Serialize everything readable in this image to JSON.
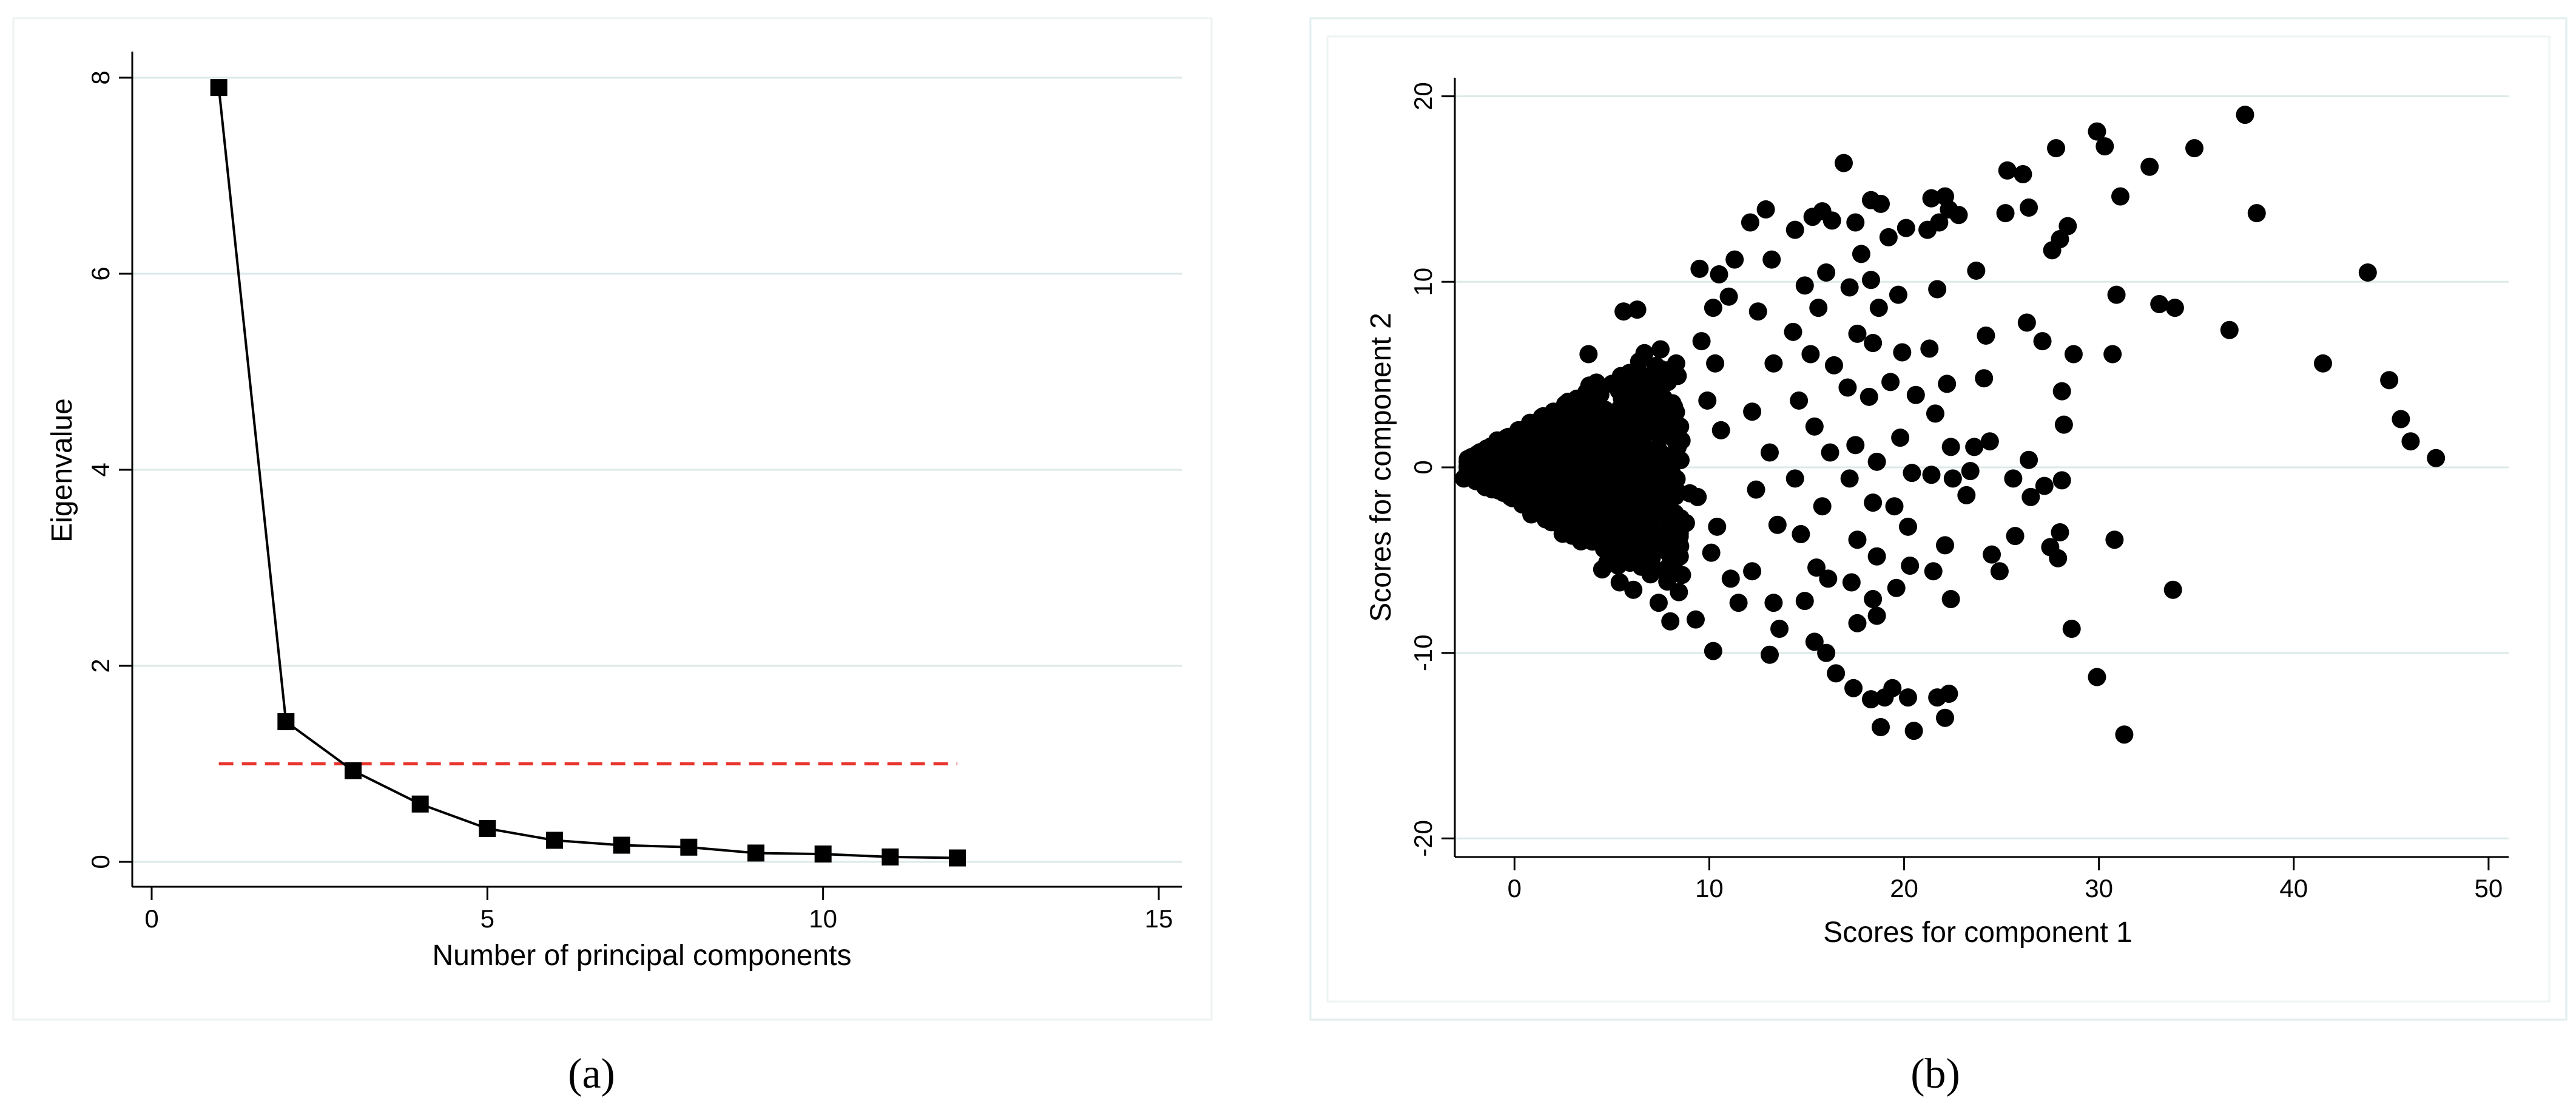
{
  "captions": {
    "a": "(a)",
    "b": "(b)"
  },
  "chart_data": [
    {
      "type": "line",
      "panel": "a",
      "xlabel": "Number of principal components",
      "ylabel": "Eigenvalue",
      "xlim": [
        0,
        15
      ],
      "ylim": [
        0,
        8
      ],
      "xticks": [
        0,
        5,
        10,
        15
      ],
      "yticks": [
        0,
        2,
        4,
        6,
        8
      ],
      "grid": "horizontal",
      "series": [
        {
          "x": [
            1,
            2,
            3,
            4,
            5,
            6,
            7,
            8,
            9,
            10,
            11,
            12
          ],
          "y": [
            7.9,
            1.43,
            0.93,
            0.59,
            0.34,
            0.22,
            0.17,
            0.15,
            0.09,
            0.08,
            0.05,
            0.04
          ],
          "marker": "square",
          "color": "#000000"
        }
      ],
      "reference_line": {
        "y": 1,
        "x": [
          1,
          12
        ],
        "style": "dashed",
        "color": "#e8342c"
      }
    },
    {
      "type": "scatter",
      "panel": "b",
      "xlabel": "Scores for component 1",
      "ylabel": "Scores for component 2",
      "xlim": [
        -3,
        51
      ],
      "ylim": [
        -21,
        21
      ],
      "xticks": [
        0,
        10,
        20,
        30,
        40,
        50
      ],
      "yticks": [
        -20,
        -10,
        0,
        10,
        20
      ],
      "grid": "horizontal",
      "marker_color": "#000000",
      "points": [
        [
          -2.6,
          -0.6
        ],
        [
          -2,
          0.2
        ],
        [
          -1.8,
          0.6
        ],
        [
          -1.6,
          -0.4
        ],
        [
          -1.4,
          0.9
        ],
        [
          -1.2,
          -0.9
        ],
        [
          -1,
          1.2
        ],
        [
          -0.8,
          -1.2
        ],
        [
          -0.6,
          0.2
        ],
        [
          -0.4,
          1.6
        ],
        [
          -0.2,
          -1.6
        ],
        [
          0,
          0.4
        ],
        [
          0.2,
          2
        ],
        [
          0.4,
          -2
        ],
        [
          0.6,
          0.8
        ],
        [
          0.8,
          2.4
        ],
        [
          1,
          -2.4
        ],
        [
          1.2,
          -0.5
        ],
        [
          1.4,
          2.7
        ],
        [
          1.6,
          -2.8
        ],
        [
          1.8,
          1.2
        ],
        [
          2,
          3
        ],
        [
          2.2,
          -3
        ],
        [
          2.4,
          0.4
        ],
        [
          2.6,
          3.4
        ],
        [
          2.8,
          -3.4
        ],
        [
          3,
          1.5
        ],
        [
          3.2,
          3.7
        ],
        [
          3.4,
          -3.6
        ],
        [
          3.6,
          -0.8
        ],
        [
          3.8,
          4
        ],
        [
          4,
          -4
        ],
        [
          4.2,
          1.8
        ],
        [
          4.4,
          4.3
        ],
        [
          4.6,
          -4.4
        ],
        [
          4.8,
          0.3
        ],
        [
          5,
          4.5
        ],
        [
          5.2,
          -4.6
        ],
        [
          5.4,
          2.2
        ],
        [
          5.6,
          4.8
        ],
        [
          5.8,
          -5
        ],
        [
          6,
          -1.1
        ],
        [
          6.2,
          5
        ],
        [
          6.4,
          -5.2
        ],
        [
          6.6,
          2.5
        ],
        [
          6.8,
          4.9
        ],
        [
          7,
          -5.4
        ],
        [
          7.2,
          0.8
        ],
        [
          7.5,
          5.3
        ],
        [
          7.8,
          -5.6
        ],
        [
          8,
          2.9
        ],
        [
          8.3,
          5.6
        ],
        [
          8.6,
          -5.8
        ],
        [
          9,
          -1.4
        ],
        [
          -0.5,
          0.9
        ],
        [
          0.3,
          -0.9
        ],
        [
          1.1,
          1.7
        ],
        [
          1.9,
          -1.8
        ],
        [
          2.7,
          2.3
        ],
        [
          3.5,
          -2.3
        ],
        [
          4.3,
          2.9
        ],
        [
          5.1,
          -2.9
        ],
        [
          5.9,
          3.4
        ],
        [
          6.7,
          -3.4
        ],
        [
          7.4,
          3.7
        ],
        [
          1.5,
          0.2
        ],
        [
          2.5,
          -0.8
        ],
        [
          3.3,
          0.6
        ],
        [
          4.1,
          -1.5
        ],
        [
          4.9,
          1.1
        ],
        [
          5.7,
          -0.3
        ],
        [
          6.5,
          1.3
        ],
        [
          7.3,
          -2
        ],
        [
          8.1,
          1.6
        ],
        [
          8.8,
          -3
        ],
        [
          5.6,
          8.4
        ],
        [
          6.3,
          8.5
        ],
        [
          3.8,
          6.1
        ],
        [
          4.5,
          -5.5
        ],
        [
          5.4,
          -6.2
        ],
        [
          6.1,
          -6.6
        ],
        [
          7.4,
          -7.3
        ],
        [
          8,
          -8.3
        ],
        [
          9.3,
          -8.2
        ],
        [
          10.2,
          -9.9
        ],
        [
          9.5,
          10.7
        ],
        [
          10.5,
          10.4
        ],
        [
          11.3,
          11.2
        ],
        [
          11,
          9.2
        ],
        [
          10.2,
          8.6
        ],
        [
          9.6,
          6.8
        ],
        [
          10.3,
          5.6
        ],
        [
          9.9,
          3.6
        ],
        [
          10.6,
          2
        ],
        [
          9.4,
          -1.6
        ],
        [
          10.4,
          -3.2
        ],
        [
          10.1,
          -4.6
        ],
        [
          11.1,
          -6
        ],
        [
          11.5,
          -7.3
        ],
        [
          12.1,
          13.2
        ],
        [
          12.9,
          13.9
        ],
        [
          13.2,
          11.2
        ],
        [
          12.5,
          8.4
        ],
        [
          13.3,
          5.6
        ],
        [
          12.2,
          3
        ],
        [
          13.1,
          0.8
        ],
        [
          12.4,
          -1.2
        ],
        [
          13.5,
          -3.1
        ],
        [
          12.2,
          -5.6
        ],
        [
          13.3,
          -7.3
        ],
        [
          13.6,
          -8.7
        ],
        [
          13.1,
          -10.1
        ],
        [
          14.4,
          12.8
        ],
        [
          15.3,
          13.5
        ],
        [
          15.8,
          13.8
        ],
        [
          16.3,
          13.3
        ],
        [
          14.9,
          9.8
        ],
        [
          15.6,
          8.6
        ],
        [
          16,
          10.5
        ],
        [
          14.3,
          7.3
        ],
        [
          15.2,
          6.1
        ],
        [
          16.4,
          5.5
        ],
        [
          14.6,
          3.6
        ],
        [
          15.4,
          2.2
        ],
        [
          16.2,
          0.8
        ],
        [
          14.4,
          -0.6
        ],
        [
          15.8,
          -2.1
        ],
        [
          14.7,
          -3.6
        ],
        [
          15.5,
          -5.4
        ],
        [
          16.1,
          -6
        ],
        [
          14.9,
          -7.2
        ],
        [
          15.4,
          -9.4
        ],
        [
          16,
          -10
        ],
        [
          16.5,
          -11.1
        ],
        [
          16.9,
          16.4
        ],
        [
          17.5,
          13.2
        ],
        [
          18.3,
          14.4
        ],
        [
          18.8,
          14.2
        ],
        [
          17.8,
          11.5
        ],
        [
          18.3,
          10.1
        ],
        [
          17.2,
          9.7
        ],
        [
          18.7,
          8.6
        ],
        [
          17.6,
          7.2
        ],
        [
          18.4,
          6.7
        ],
        [
          17.1,
          4.3
        ],
        [
          18.2,
          3.8
        ],
        [
          17.5,
          1.2
        ],
        [
          18.6,
          0.3
        ],
        [
          17.2,
          -0.6
        ],
        [
          18.4,
          -1.9
        ],
        [
          17.6,
          -3.9
        ],
        [
          18.6,
          -4.8
        ],
        [
          17.3,
          -6.2
        ],
        [
          18.4,
          -7.1
        ],
        [
          17.4,
          -11.9
        ],
        [
          18.3,
          -12.5
        ],
        [
          17.6,
          -8.4
        ],
        [
          18.6,
          -8
        ],
        [
          19.2,
          12.4
        ],
        [
          20.1,
          12.9
        ],
        [
          19.7,
          9.3
        ],
        [
          19.9,
          6.2
        ],
        [
          19.3,
          4.6
        ],
        [
          20.6,
          3.9
        ],
        [
          19.8,
          1.6
        ],
        [
          20.4,
          -0.3
        ],
        [
          19.5,
          -2.1
        ],
        [
          20.2,
          -3.2
        ],
        [
          19.6,
          -6.5
        ],
        [
          20.3,
          -5.3
        ],
        [
          19,
          -12.4
        ],
        [
          19.4,
          -11.9
        ],
        [
          20.2,
          -12.4
        ],
        [
          18.8,
          -14
        ],
        [
          20.5,
          -14.2
        ],
        [
          21.4,
          14.5
        ],
        [
          22.1,
          14.6
        ],
        [
          22.3,
          13.9
        ],
        [
          21.8,
          13.2
        ],
        [
          21.2,
          12.8
        ],
        [
          22.8,
          13.6
        ],
        [
          21.7,
          9.6
        ],
        [
          21.3,
          6.4
        ],
        [
          22.2,
          4.5
        ],
        [
          21.6,
          2.9
        ],
        [
          22.4,
          1.1
        ],
        [
          21.4,
          -0.4
        ],
        [
          22.5,
          -0.6
        ],
        [
          21.5,
          -5.6
        ],
        [
          22.1,
          -4.2
        ],
        [
          22.4,
          -7.1
        ],
        [
          21.7,
          -12.4
        ],
        [
          22.3,
          -12.2
        ],
        [
          22.1,
          -13.5
        ],
        [
          23.7,
          10.6
        ],
        [
          24.2,
          7.1
        ],
        [
          24.1,
          4.8
        ],
        [
          23.6,
          1.1
        ],
        [
          24.4,
          1.4
        ],
        [
          23.2,
          -1.5
        ],
        [
          24.5,
          -4.7
        ],
        [
          24.9,
          -5.6
        ],
        [
          23.4,
          -0.2
        ],
        [
          25.2,
          13.7
        ],
        [
          25.3,
          16
        ],
        [
          26.1,
          15.8
        ],
        [
          26.4,
          14
        ],
        [
          25.6,
          -0.6
        ],
        [
          25.7,
          -3.7
        ],
        [
          26.4,
          0.4
        ],
        [
          26.5,
          -1.6
        ],
        [
          26.3,
          7.8
        ],
        [
          27.1,
          6.8
        ],
        [
          27.2,
          -1
        ],
        [
          27.5,
          -4.3
        ],
        [
          27.6,
          11.7
        ],
        [
          28,
          12.3
        ],
        [
          27.8,
          17.2
        ],
        [
          28.4,
          13
        ],
        [
          28.1,
          4.1
        ],
        [
          28.2,
          2.3
        ],
        [
          28.1,
          -0.7
        ],
        [
          28,
          -3.5
        ],
        [
          27.9,
          -4.9
        ],
        [
          28.7,
          6.1
        ],
        [
          28.6,
          -8.7
        ],
        [
          29.9,
          18.1
        ],
        [
          30.3,
          17.3
        ],
        [
          29.9,
          -11.3
        ],
        [
          30.7,
          6.1
        ],
        [
          30.9,
          9.3
        ],
        [
          31.1,
          14.6
        ],
        [
          30.8,
          -3.9
        ],
        [
          31.3,
          -14.4
        ],
        [
          32.6,
          16.2
        ],
        [
          33.1,
          8.8
        ],
        [
          33.9,
          8.6
        ],
        [
          33.8,
          -6.6
        ],
        [
          34.9,
          17.2
        ],
        [
          36.7,
          7.4
        ],
        [
          37.5,
          19
        ],
        [
          38.1,
          13.7
        ],
        [
          41.5,
          5.6
        ],
        [
          43.8,
          10.5
        ],
        [
          44.9,
          4.7
        ],
        [
          45.5,
          2.6
        ],
        [
          46,
          1.4
        ],
        [
          47.3,
          0.5
        ]
      ],
      "cloud_seed": 7,
      "cloud_count": 1300
    }
  ]
}
